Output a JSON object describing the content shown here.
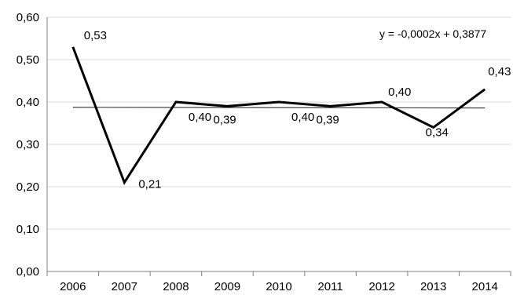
{
  "chart_data": {
    "type": "line",
    "categories": [
      "2006",
      "2007",
      "2008",
      "2009",
      "2010",
      "2011",
      "2012",
      "2013",
      "2014"
    ],
    "series": [
      {
        "values": [
          0.53,
          0.21,
          0.4,
          0.39,
          0.4,
          0.39,
          0.4,
          0.34,
          0.43
        ]
      }
    ],
    "data_labels": [
      "0,53",
      "0,21",
      "0,40",
      "0,39",
      "0,40",
      "0,39",
      "0,40",
      "0,34",
      "0,43"
    ],
    "trendline": {
      "type": "linear",
      "slope": -0.0002,
      "intercept": 0.3877,
      "equation_label": "y = -0,0002x + 0,3877"
    },
    "ylim": [
      0,
      0.6
    ],
    "y_ticks": [
      0,
      0.1,
      0.2,
      0.3,
      0.4,
      0.5,
      0.6
    ],
    "y_tick_labels": [
      "0,00",
      "0,10",
      "0,20",
      "0,30",
      "0,40",
      "0,50",
      "0,60"
    ],
    "grid": true,
    "legend": "none",
    "title": "",
    "xlabel": "",
    "ylabel": "",
    "colors": {
      "line": "#000000",
      "grid": "#d9d9d9",
      "trendline": "#404040",
      "axis": "#808080"
    }
  }
}
